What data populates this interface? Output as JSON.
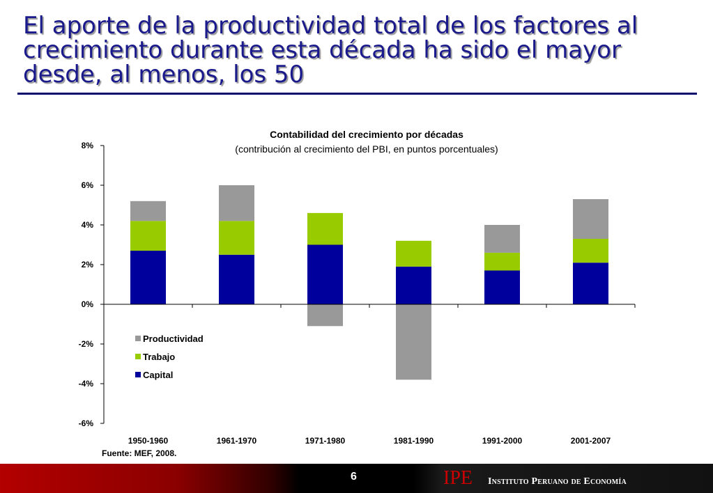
{
  "slide": {
    "title": "El aporte de la productividad total de los factores al crecimiento durante esta década ha sido el mayor desde, al menos, los 50",
    "source": "Fuente: MEF, 2008.",
    "page_number": "6",
    "logo_text": "IPE",
    "institute_name": "Instituto Peruano de Economía"
  },
  "chart_data": {
    "type": "bar",
    "stacked": true,
    "title": "Contabilidad del crecimiento por décadas",
    "subtitle": "(contribución al crecimiento del PBI, en puntos porcentuales)",
    "categories": [
      "1950-1960",
      "1961-1970",
      "1971-1980",
      "1981-1990",
      "1991-2000",
      "2001-2007"
    ],
    "series": [
      {
        "name": "Capital",
        "color": "#00009c",
        "values": [
          2.7,
          2.5,
          3.0,
          1.9,
          1.7,
          2.1
        ]
      },
      {
        "name": "Trabajo",
        "color": "#99cc00",
        "values": [
          1.5,
          1.7,
          1.6,
          1.3,
          0.9,
          1.2
        ]
      },
      {
        "name": "Productividad",
        "color": "#999999",
        "values": [
          1.0,
          1.8,
          -1.1,
          -3.8,
          1.4,
          2.0
        ]
      }
    ],
    "legend_order": [
      "Productividad",
      "Trabajo",
      "Capital"
    ],
    "yticks": [
      "8%",
      "6%",
      "4%",
      "2%",
      "0%",
      "-2%",
      "-4%",
      "-6%"
    ],
    "ylim": [
      -6,
      8
    ],
    "xlabel": "",
    "ylabel": "",
    "grid": false,
    "legend": "inside lower-left"
  }
}
